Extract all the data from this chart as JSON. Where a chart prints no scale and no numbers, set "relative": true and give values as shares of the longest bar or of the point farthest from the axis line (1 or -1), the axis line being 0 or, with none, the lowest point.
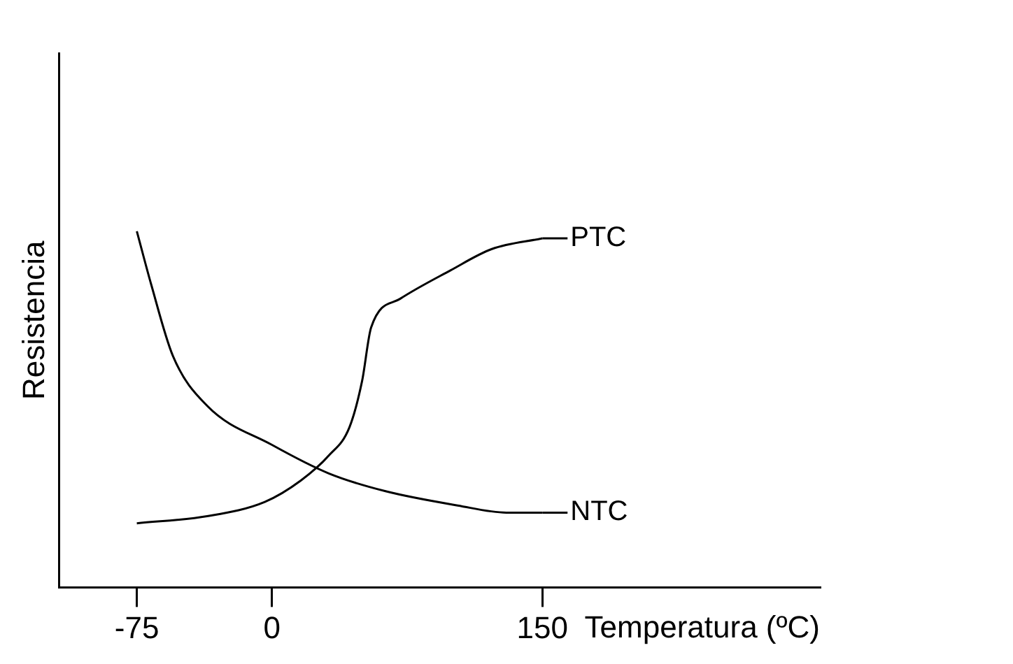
{
  "chart_data": {
    "type": "line",
    "xlabel": "Temperatura (ºC)",
    "ylabel": "Resistencia",
    "xlim": [
      -118,
      304
    ],
    "xticks": [
      -75,
      0,
      150
    ],
    "relative": true,
    "marker": "none",
    "line_style": "solid",
    "legend": "right",
    "series": [
      {
        "name": "PTC",
        "color": "#000000",
        "x": [
          -75,
          -36,
          -4,
          16,
          31.5,
          43,
          50,
          55,
          71,
          99,
          122,
          150
        ],
        "values": [
          0.18,
          0.2,
          0.24,
          0.3,
          0.37,
          0.45,
          0.58,
          0.73,
          0.81,
          0.89,
          0.95,
          0.98
        ]
      },
      {
        "name": "NTC",
        "color": "#000000",
        "x": [
          -75,
          -67,
          -55,
          -36,
          0,
          31.5,
          63,
          103,
          130,
          150
        ],
        "values": [
          1.0,
          0.85,
          0.65,
          0.51,
          0.4,
          0.32,
          0.27,
          0.23,
          0.21,
          0.21
        ]
      }
    ]
  }
}
